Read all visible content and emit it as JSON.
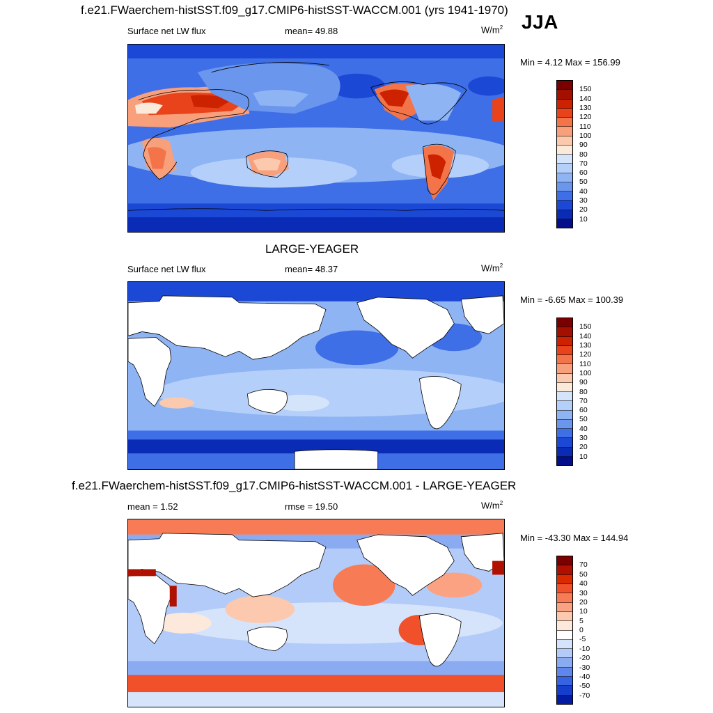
{
  "header": {
    "title": "f.e21.FWaerchem-histSST.f09_g17.CMIP6-histSST-WACCM.001 (yrs 1941-1970)",
    "season": "JJA"
  },
  "panels": [
    {
      "variable": "Surface net LW flux",
      "stat": "mean=  49.88",
      "units": "W/m",
      "units_exp": "2",
      "minmax": "Min =   4.12 Max = 156.99",
      "legend": [
        "150",
        "140",
        "130",
        "120",
        "110",
        "100",
        "90",
        "80",
        "70",
        "60",
        "50",
        "40",
        "30",
        "20",
        "10"
      ]
    },
    {
      "dataset": "LARGE-YEAGER",
      "variable": "Surface net LW flux",
      "stat": "mean=  48.37",
      "units": "W/m",
      "units_exp": "2",
      "minmax": "Min =  -6.65 Max = 100.39",
      "legend": [
        "150",
        "140",
        "130",
        "120",
        "110",
        "100",
        "90",
        "80",
        "70",
        "60",
        "50",
        "40",
        "30",
        "20",
        "10"
      ]
    },
    {
      "diff_title": "f.e21.FWaerchem-histSST.f09_g17.CMIP6-histSST-WACCM.001 - LARGE-YEAGER",
      "mean": "mean =   1.52",
      "rmse": "rmse =  19.50",
      "units": "W/m",
      "units_exp": "2",
      "minmax": "Min = -43.30 Max = 144.94",
      "legend": [
        "70",
        "50",
        "40",
        "30",
        "20",
        "10",
        "5",
        "0",
        "-5",
        "-10",
        "-20",
        "-30",
        "-40",
        "-50",
        "-70"
      ]
    }
  ],
  "colors": {
    "abs_scale": [
      "#7a0000",
      "#a31000",
      "#cc2200",
      "#e8431a",
      "#f4744a",
      "#f89f7c",
      "#fbc9ad",
      "#fbe9d9",
      "#d4e4fa",
      "#b4cffa",
      "#8fb4f4",
      "#6a96ee",
      "#3f6fe6",
      "#1c48d6",
      "#0a2bb5",
      "#030f8a"
    ],
    "diff_scale": [
      "#7a0000",
      "#b01000",
      "#d92a00",
      "#f0502a",
      "#f77c56",
      "#fba283",
      "#fcc9ae",
      "#fde9dc",
      "#ffffff",
      "#d6e4fb",
      "#b3cbf8",
      "#8aaaf2",
      "#5f86ec",
      "#3563e2",
      "#153ecc",
      "#041ca4"
    ],
    "land": "#ffffff",
    "coast": "#000000"
  }
}
